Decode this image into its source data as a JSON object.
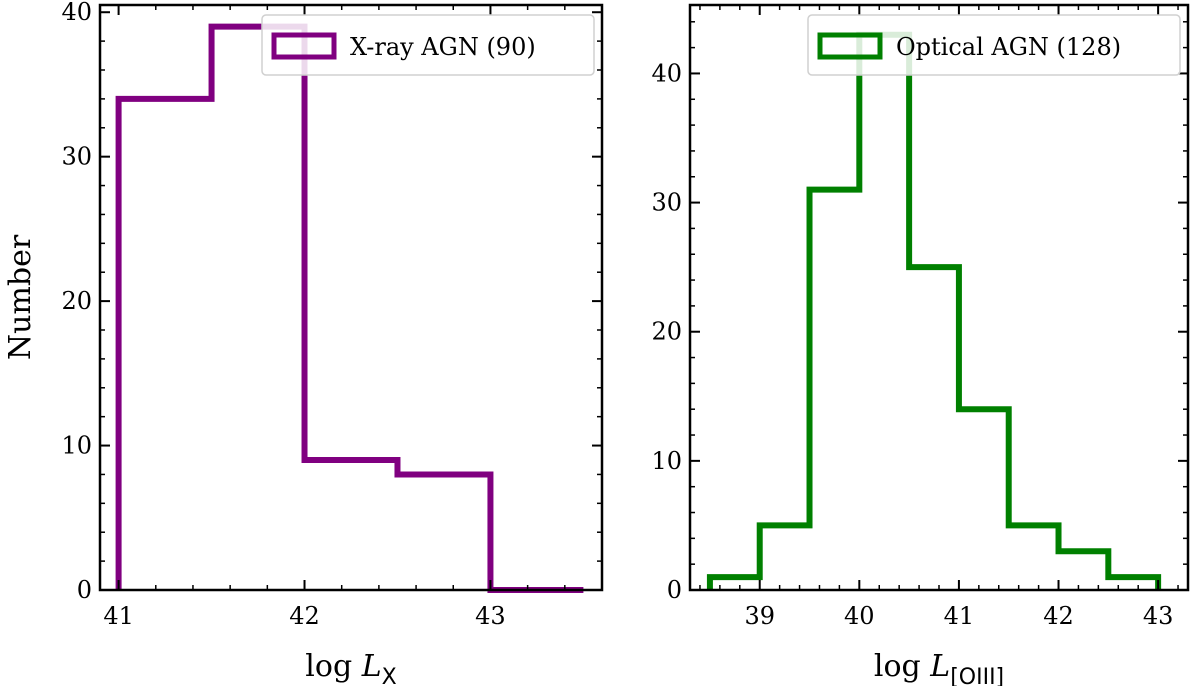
{
  "chart_data": [
    {
      "type": "histogram",
      "color": "#800080",
      "xlabel": "log L",
      "xlabel_sub": "X",
      "ylabel": "Number",
      "xlim": [
        40.9,
        43.6
      ],
      "ylim": [
        0,
        40.5
      ],
      "xticks": [
        41,
        42,
        43
      ],
      "yticks": [
        0,
        10,
        20,
        30,
        40
      ],
      "bin_edges": [
        41.0,
        41.5,
        42.0,
        42.5,
        43.0,
        43.5
      ],
      "counts": [
        34,
        39,
        9,
        8,
        0
      ],
      "legend": {
        "label": "X-ray AGN (90)",
        "position": "top-right"
      },
      "grid": false
    },
    {
      "type": "histogram",
      "color": "#008000",
      "xlabel": "log L",
      "xlabel_sub": "[OIII]",
      "ylabel": "",
      "xlim": [
        38.3,
        43.3
      ],
      "ylim": [
        0,
        45.3
      ],
      "xticks": [
        39,
        40,
        41,
        42,
        43
      ],
      "yticks": [
        0,
        10,
        20,
        30,
        40
      ],
      "bin_edges": [
        38.5,
        39.0,
        39.5,
        40.0,
        40.5,
        41.0,
        41.5,
        42.0,
        42.5,
        43.0
      ],
      "counts": [
        1,
        5,
        31,
        43,
        25,
        14,
        5,
        3,
        1
      ],
      "legend": {
        "label": "Optical AGN (128)",
        "position": "top-right"
      },
      "grid": false
    }
  ]
}
